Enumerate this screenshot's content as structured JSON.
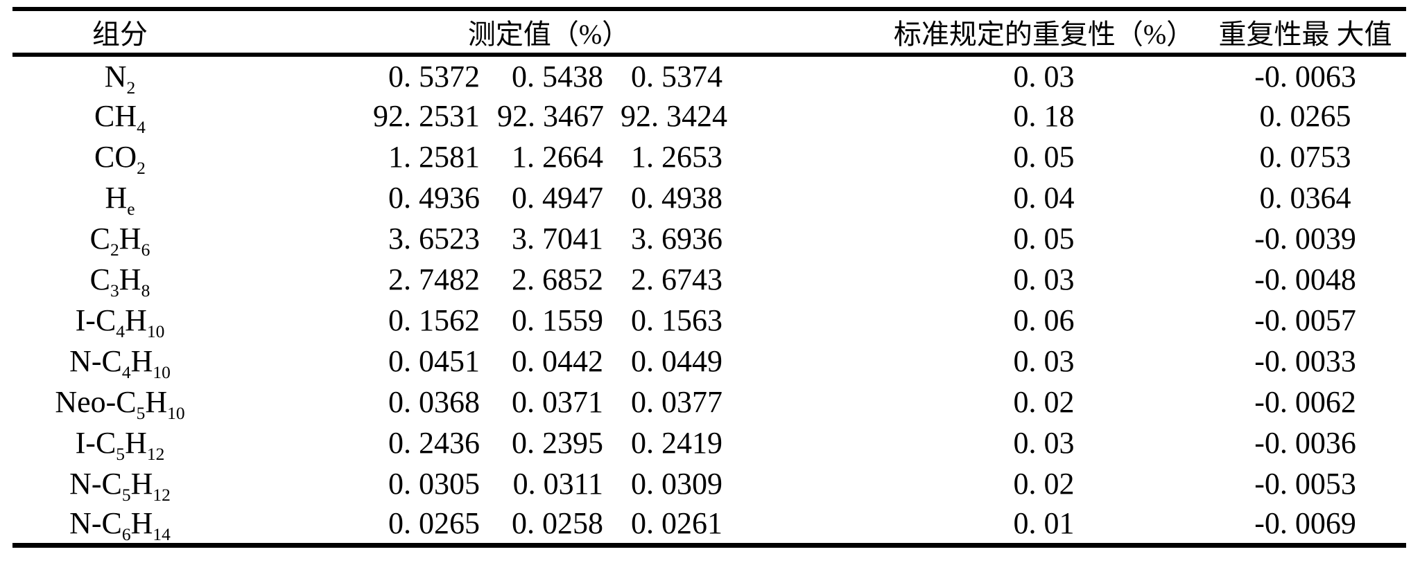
{
  "page": {
    "background": "#ffffff",
    "text_color": "#000000",
    "rule_color": "#000000"
  },
  "table": {
    "columns": {
      "component": "组分",
      "measured": "测定值（%）",
      "repeatability": "标准规定的重复性（%）",
      "max_repeatability": "重复性最 大值"
    },
    "rows": [
      {
        "component": "N_{2}",
        "measured": [
          "0. 5372",
          "0. 5438",
          "0. 5374"
        ],
        "repeatability": "0. 03",
        "max_repeatability": "-0. 0063"
      },
      {
        "component": "CH_{4}",
        "measured": [
          "92. 2531",
          "92. 3467",
          "92. 3424"
        ],
        "repeatability": "0. 18",
        "max_repeatability": "0. 0265"
      },
      {
        "component": "CO_{2}",
        "measured": [
          "1. 2581",
          "1. 2664",
          "1. 2653"
        ],
        "repeatability": "0. 05",
        "max_repeatability": "0. 0753"
      },
      {
        "component": "H_{e}",
        "measured": [
          "0. 4936",
          "0. 4947",
          "0. 4938"
        ],
        "repeatability": "0. 04",
        "max_repeatability": "0. 0364"
      },
      {
        "component": "C_{2}H_{6}",
        "measured": [
          "3. 6523",
          "3. 7041",
          "3. 6936"
        ],
        "repeatability": "0. 05",
        "max_repeatability": "-0. 0039"
      },
      {
        "component": "C_{3}H_{8}",
        "measured": [
          "2. 7482",
          "2. 6852",
          "2. 6743"
        ],
        "repeatability": "0. 03",
        "max_repeatability": "-0. 0048"
      },
      {
        "component": "I-C_{4}H_{10}",
        "measured": [
          "0. 1562",
          "0. 1559",
          "0. 1563"
        ],
        "repeatability": "0. 06",
        "max_repeatability": "-0. 0057"
      },
      {
        "component": "N-C_{4}H_{10}",
        "measured": [
          "0. 0451",
          "0. 0442",
          "0. 0449"
        ],
        "repeatability": "0. 03",
        "max_repeatability": "-0. 0033"
      },
      {
        "component": "Neo-C_{5}H_{10}",
        "measured": [
          "0. 0368",
          "0. 0371",
          "0. 0377"
        ],
        "repeatability": "0. 02",
        "max_repeatability": "-0. 0062"
      },
      {
        "component": "I-C_{5}H_{12}",
        "measured": [
          "0. 2436",
          "0. 2395",
          "0. 2419"
        ],
        "repeatability": "0. 03",
        "max_repeatability": "-0. 0036"
      },
      {
        "component": "N-C_{5}H_{12}",
        "measured": [
          "0. 0305",
          "0. 0311",
          "0. 0309"
        ],
        "repeatability": "0. 02",
        "max_repeatability": "-0. 0053"
      },
      {
        "component": "N-C_{6}H_{14}",
        "measured": [
          "0. 0265",
          "0. 0258",
          "0. 0261"
        ],
        "repeatability": "0. 01",
        "max_repeatability": "-0. 0069"
      }
    ]
  }
}
